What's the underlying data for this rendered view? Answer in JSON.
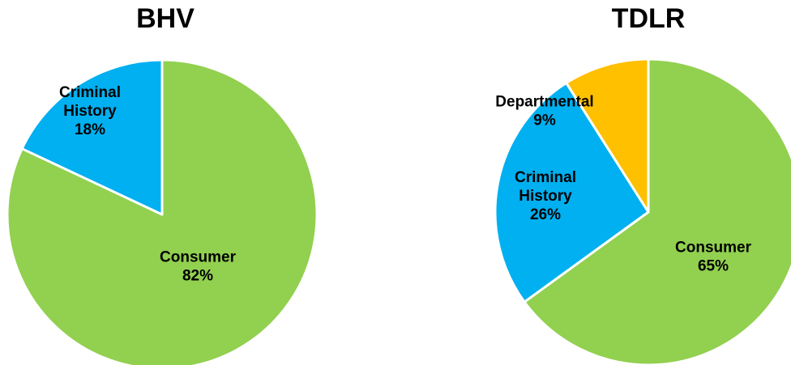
{
  "chart_data": [
    {
      "type": "pie",
      "title": "BHV",
      "slices": [
        {
          "name": "Consumer",
          "value": 82,
          "label": "Consumer",
          "pct": "82%",
          "color": "#92d050"
        },
        {
          "name": "Criminal History",
          "value": 18,
          "label": "Criminal History",
          "pct": "18%",
          "color": "#00b0f0"
        }
      ]
    },
    {
      "type": "pie",
      "title": "TDLR",
      "slices": [
        {
          "name": "Consumer",
          "value": 65,
          "label": "Consumer",
          "pct": "65%",
          "color": "#92d050"
        },
        {
          "name": "Criminal History",
          "value": 26,
          "label": "Criminal History",
          "pct": "26%",
          "color": "#00b0f0"
        },
        {
          "name": "Departmental",
          "value": 9,
          "label": "Departmental",
          "pct": "9%",
          "color": "#ffc000"
        }
      ]
    }
  ]
}
